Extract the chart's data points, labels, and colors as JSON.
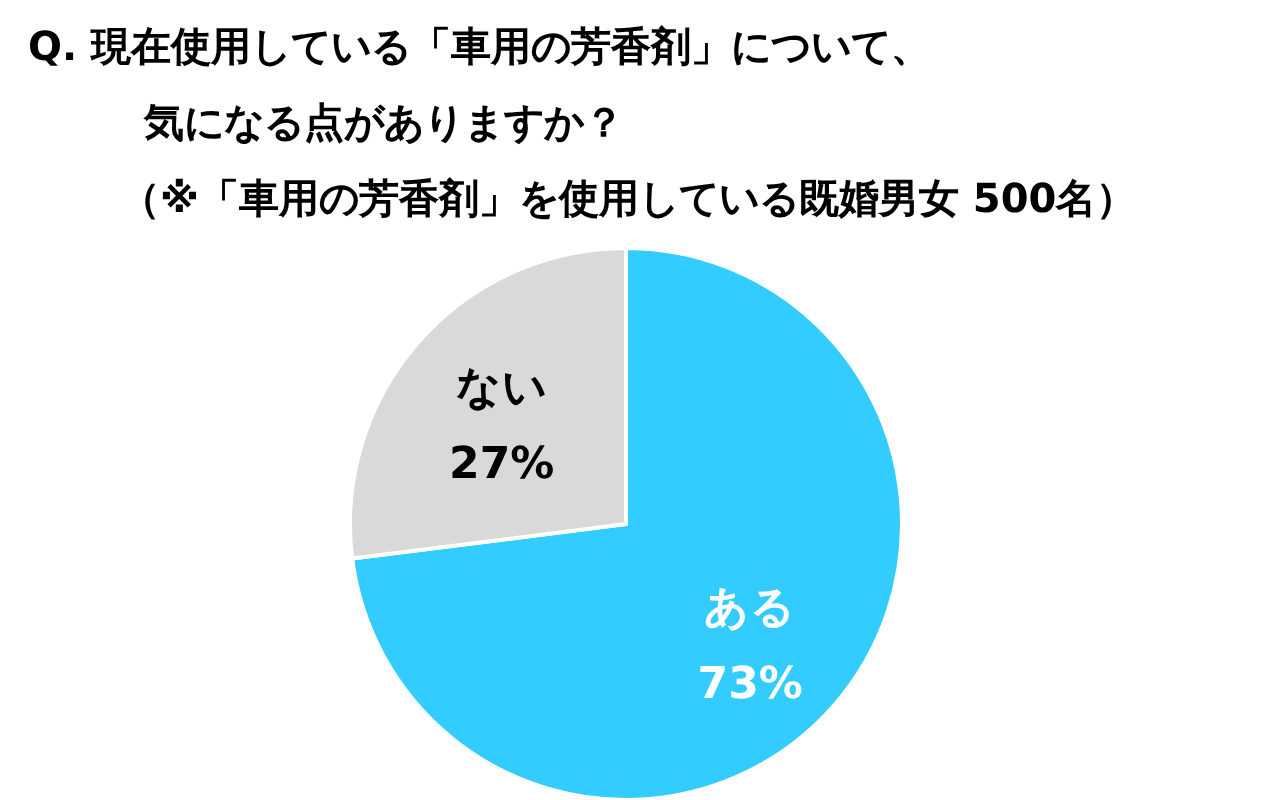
{
  "chart_data": {
    "type": "pie",
    "title": "Q. 現在使用している「車用の芳香剤」について、気になる点がありますか？",
    "subtitle": "（※「車用の芳香剤」を使用している既婚男女 500名）",
    "categories": [
      "ある",
      "ない"
    ],
    "values": [
      73,
      27
    ],
    "colors": [
      "#33ccff",
      "#d9d9d9"
    ],
    "value_labels": [
      "73%",
      "27%"
    ],
    "legend": false
  }
}
